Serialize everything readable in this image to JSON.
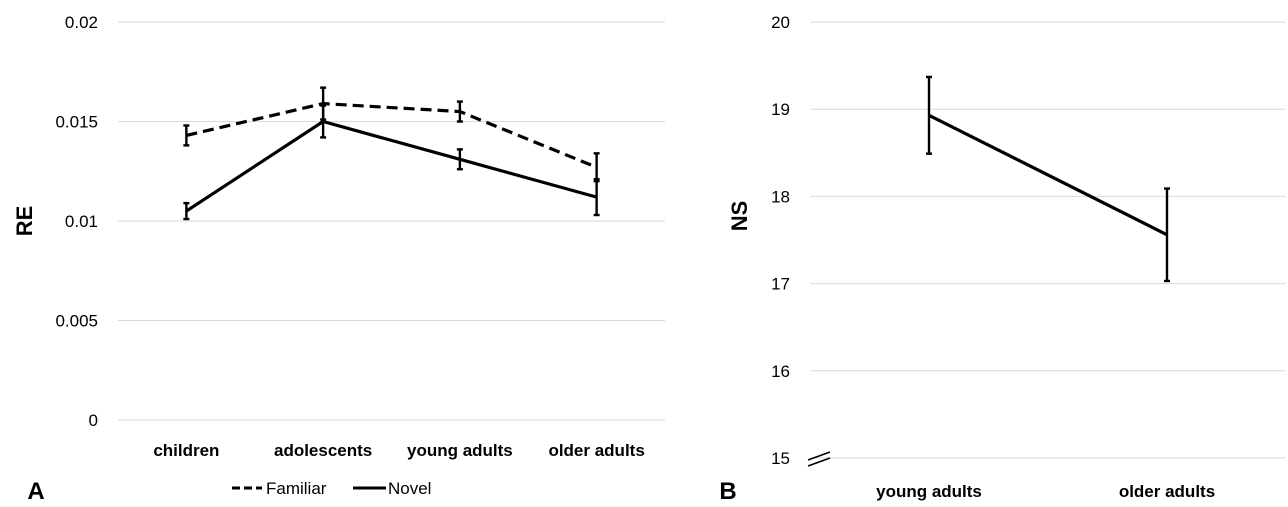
{
  "chart_data": [
    {
      "panel_label": "A",
      "type": "line",
      "ylabel": "RE",
      "ylim": [
        0,
        0.02
      ],
      "yticks": [
        0,
        0.005,
        0.01,
        0.015,
        0.02
      ],
      "ytick_labels": [
        "0",
        "0.005",
        "0.01",
        "0.015",
        "0.02"
      ],
      "categories": [
        "children",
        "adolescents",
        "young adults",
        "older adults"
      ],
      "grid": true,
      "legend_position": "bottom",
      "series": [
        {
          "name": "Familiar",
          "style": "dashed",
          "color": "#000000",
          "values": [
            0.0143,
            0.0159,
            0.0155,
            0.0127
          ],
          "errors": [
            0.0005,
            0.0008,
            0.0005,
            0.0007
          ]
        },
        {
          "name": "Novel",
          "style": "solid",
          "color": "#000000",
          "values": [
            0.0105,
            0.015,
            0.0131,
            0.0112
          ],
          "errors": [
            0.0004,
            0.0008,
            0.0005,
            0.0009
          ]
        }
      ]
    },
    {
      "panel_label": "B",
      "type": "line",
      "ylabel": "NS",
      "ylim": [
        15,
        20
      ],
      "yticks": [
        15,
        16,
        17,
        18,
        19,
        20
      ],
      "ytick_labels": [
        "15",
        "16",
        "17",
        "18",
        "19",
        "20"
      ],
      "axis_break": true,
      "categories": [
        "young adults",
        "older adults"
      ],
      "grid": true,
      "series": [
        {
          "name": "",
          "style": "solid",
          "color": "#000000",
          "values": [
            18.93,
            17.56
          ],
          "errors": [
            0.44,
            0.53
          ]
        }
      ]
    }
  ]
}
